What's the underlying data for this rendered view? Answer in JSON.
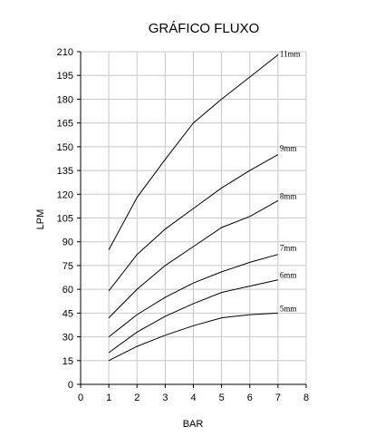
{
  "chart_data": {
    "type": "line",
    "title": "GRÁFICO FLUXO",
    "xlabel": "BAR",
    "ylabel": "LPM",
    "xlim": [
      0,
      8
    ],
    "ylim": [
      0,
      210
    ],
    "x_ticks": [
      0,
      1,
      2,
      3,
      4,
      5,
      6,
      7,
      8
    ],
    "y_ticks": [
      0,
      15,
      30,
      45,
      60,
      75,
      90,
      105,
      120,
      135,
      150,
      165,
      180,
      195,
      210
    ],
    "grid": true,
    "x": [
      1,
      2,
      3,
      4,
      5,
      6,
      7
    ],
    "series": [
      {
        "name": "11mm",
        "values": [
          85,
          118,
          142,
          165,
          180,
          194,
          208
        ]
      },
      {
        "name": "9mm",
        "values": [
          59,
          82,
          98,
          111,
          124,
          135,
          145
        ]
      },
      {
        "name": "8mm",
        "values": [
          42,
          60,
          75,
          87,
          99,
          106,
          116
        ]
      },
      {
        "name": "7mm",
        "values": [
          30,
          44,
          55,
          64,
          71,
          77,
          82
        ]
      },
      {
        "name": "6mm",
        "values": [
          20,
          33,
          43,
          51,
          58,
          62,
          66
        ]
      },
      {
        "name": "5mm",
        "values": [
          15,
          24,
          31,
          37,
          42,
          44,
          45
        ]
      }
    ],
    "line_color": "#000000",
    "grid_color": "#c8c8c8"
  }
}
